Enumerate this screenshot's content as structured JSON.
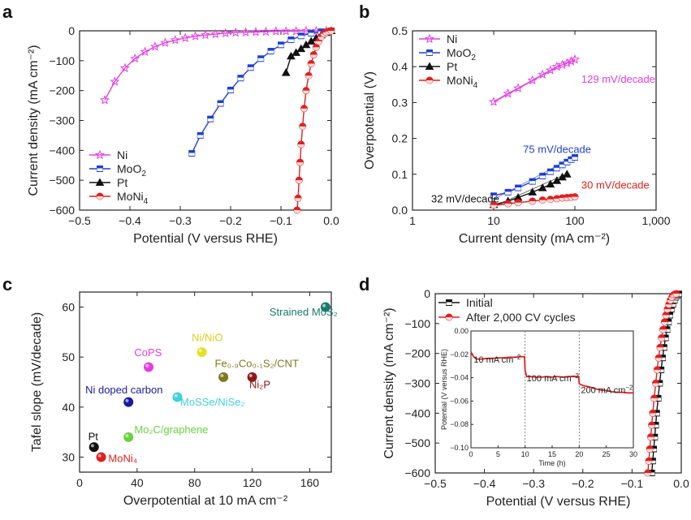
{
  "chart_data": [
    {
      "panel": "a",
      "type": "line",
      "xlabel": "Potential (V versus RHE)",
      "ylabel": "Current density (mA cm⁻²)",
      "xlim": [
        -0.5,
        0.0
      ],
      "ylim": [
        -600,
        0
      ],
      "xticks": [
        -0.5,
        -0.4,
        -0.3,
        -0.2,
        -0.1,
        0.0
      ],
      "xtick_labels": [
        "−0.5",
        "−0.4",
        "−0.3",
        "−0.2",
        "−0.1",
        "0.0"
      ],
      "yticks": [
        0,
        -100,
        -200,
        -300,
        -400,
        -500,
        -600
      ],
      "ytick_labels": [
        "0",
        "−100",
        "−200",
        "−300",
        "−400",
        "−500",
        "−600"
      ],
      "legend_position": "bottom-left",
      "series": [
        {
          "name": "Ni",
          "label_base": "Ni",
          "label_sub": "",
          "color": "#e040e0",
          "marker": "star",
          "x": [
            -0.45,
            -0.43,
            -0.41,
            -0.39,
            -0.37,
            -0.35,
            -0.33,
            -0.31,
            -0.29,
            -0.27,
            -0.25,
            -0.23,
            -0.21,
            -0.19,
            -0.17,
            -0.15,
            -0.13,
            -0.11,
            -0.09,
            -0.07,
            -0.05,
            -0.03,
            -0.01
          ],
          "y": [
            -232,
            -170,
            -125,
            -93,
            -70,
            -53,
            -40,
            -31,
            -24,
            -18,
            -14,
            -11,
            -8,
            -6,
            -5,
            -4,
            -3,
            -2,
            -1.5,
            -1,
            -0.5,
            -0.3,
            0
          ]
        },
        {
          "name": "MoO2",
          "label_base": "MoO",
          "label_sub": "2",
          "color": "#1f3fd1",
          "marker": "square",
          "x": [
            -0.277,
            -0.26,
            -0.24,
            -0.22,
            -0.2,
            -0.18,
            -0.16,
            -0.14,
            -0.12,
            -0.1,
            -0.08,
            -0.06,
            -0.04,
            -0.02,
            0.0
          ],
          "y": [
            -410,
            -350,
            -295,
            -243,
            -198,
            -158,
            -123,
            -93,
            -68,
            -47,
            -30,
            -17,
            -8,
            -3,
            0
          ]
        },
        {
          "name": "Pt",
          "label_base": "Pt",
          "label_sub": "",
          "color": "#111111",
          "marker": "triangle",
          "x": [
            -0.09,
            -0.08,
            -0.07,
            -0.06,
            -0.05,
            -0.04,
            -0.03,
            -0.02,
            -0.01,
            0.0
          ],
          "y": [
            -140,
            -85,
            -73,
            -60,
            -47,
            -35,
            -24,
            -14,
            -6,
            0
          ]
        },
        {
          "name": "MoNi4",
          "label_base": "MoNi",
          "label_sub": "4",
          "color": "#e02020",
          "marker": "circle",
          "x": [
            -0.068,
            -0.066,
            -0.064,
            -0.062,
            -0.06,
            -0.057,
            -0.054,
            -0.05,
            -0.045,
            -0.04,
            -0.035,
            -0.03,
            -0.025,
            -0.02,
            -0.015,
            -0.01,
            -0.005,
            0.0
          ],
          "y": [
            -600,
            -560,
            -500,
            -440,
            -380,
            -320,
            -260,
            -200,
            -150,
            -110,
            -80,
            -55,
            -35,
            -20,
            -10,
            -5,
            -2,
            0
          ]
        }
      ]
    },
    {
      "panel": "b",
      "type": "line",
      "xlabel": "Current density (mA cm⁻²)",
      "ylabel": "Overpotential (V)",
      "xscale": "log",
      "xlim": [
        1,
        1000
      ],
      "ylim": [
        0.0,
        0.5
      ],
      "xticks": [
        1,
        10,
        100,
        1000
      ],
      "xtick_labels": [
        "1",
        "10",
        "100",
        "1,000"
      ],
      "yticks": [
        0.0,
        0.1,
        0.2,
        0.3,
        0.4,
        0.5
      ],
      "ytick_labels": [
        "0.0",
        "0.1",
        "0.2",
        "0.3",
        "0.4",
        "0.5"
      ],
      "legend_position": "top-left",
      "series": [
        {
          "name": "Ni",
          "label_base": "Ni",
          "label_sub": "",
          "color": "#e040e0",
          "marker": "star",
          "x": [
            10,
            15,
            20,
            30,
            40,
            50,
            60,
            70,
            80,
            90,
            100
          ],
          "y": [
            0.302,
            0.325,
            0.34,
            0.362,
            0.378,
            0.39,
            0.4,
            0.405,
            0.41,
            0.415,
            0.42
          ]
        },
        {
          "name": "MoO2",
          "label_base": "MoO",
          "label_sub": "2",
          "color": "#1f3fd1",
          "marker": "square",
          "x": [
            10,
            15,
            20,
            30,
            40,
            50,
            60,
            70,
            80,
            90,
            100
          ],
          "y": [
            0.04,
            0.05,
            0.062,
            0.08,
            0.095,
            0.107,
            0.117,
            0.126,
            0.134,
            0.141,
            0.147
          ]
        },
        {
          "name": "Pt",
          "label_base": "Pt",
          "label_sub": "",
          "color": "#111111",
          "marker": "triangle",
          "x": [
            10,
            15,
            20,
            30,
            40,
            50,
            60,
            70,
            80
          ],
          "y": [
            0.015,
            0.025,
            0.035,
            0.05,
            0.062,
            0.072,
            0.082,
            0.092,
            0.1
          ]
        },
        {
          "name": "MoNi4",
          "label_base": "MoNi",
          "label_sub": "4",
          "color": "#e02020",
          "marker": "circle",
          "x": [
            10,
            15,
            20,
            30,
            40,
            50,
            60,
            70,
            80,
            90,
            100
          ],
          "y": [
            0.014,
            0.018,
            0.021,
            0.025,
            0.028,
            0.03,
            0.032,
            0.034,
            0.035,
            0.036,
            0.037
          ]
        }
      ],
      "annotations": [
        {
          "text": "129 mV/decade",
          "x": 120,
          "y": 0.355,
          "color": "#e040e0"
        },
        {
          "text": "75 mV/decade",
          "x": 23,
          "y": 0.16,
          "color": "#1f3fd1"
        },
        {
          "text": "30 mV/decade",
          "x": 120,
          "y": 0.06,
          "color": "#e02020"
        },
        {
          "text": "32 mV/decade",
          "x": 1.7,
          "y": 0.022,
          "color": "#111111"
        }
      ]
    },
    {
      "panel": "c",
      "type": "scatter",
      "xlabel": "Overpotential at 10 mA cm⁻²",
      "ylabel": "Tafel slope (mV/decade)",
      "xlim": [
        0,
        175
      ],
      "ylim": [
        27,
        63
      ],
      "xticks": [
        0,
        40,
        80,
        120,
        160
      ],
      "xtick_labels": [
        "0",
        "40",
        "80",
        "120",
        "160"
      ],
      "yticks": [
        30,
        40,
        50,
        60
      ],
      "ytick_labels": [
        "30",
        "40",
        "50",
        "60"
      ],
      "points": [
        {
          "label": "Strained MoS₂",
          "x": 171,
          "y": 60,
          "color": "#1a7a6a",
          "lx": 132,
          "ly": 58.3
        },
        {
          "label": "Ni/NiO",
          "x": 85,
          "y": 51,
          "color": "#e6e020",
          "lx": 78,
          "ly": 53.2
        },
        {
          "label": "CoPS",
          "x": 48,
          "y": 48,
          "color": "#e040e0",
          "lx": 38,
          "ly": 50.2
        },
        {
          "label": "Fe₀.₉Co₀.₁S₂/CNT",
          "x": 100,
          "y": 46,
          "color": "#7a7a20",
          "lx": 94,
          "ly": 48.0
        },
        {
          "label": "Ni₂P",
          "x": 120,
          "y": 46,
          "color": "#8a1a1a",
          "lx": 118,
          "ly": 43.8
        },
        {
          "label": "Ni doped carbon",
          "x": 34,
          "y": 41,
          "color": "#1a1aa0",
          "lx": 4,
          "ly": 42.7
        },
        {
          "label": "MoSSe/NiSe₂",
          "x": 68,
          "y": 42,
          "color": "#40d0e0",
          "lx": 70,
          "ly": 40.3
        },
        {
          "label": "Mo₂C/graphene",
          "x": 34,
          "y": 34,
          "color": "#6ad040",
          "lx": 38,
          "ly": 34.8
        },
        {
          "label": "Pt",
          "x": 10,
          "y": 32,
          "color": "#111111",
          "lx": 6,
          "ly": 33.4
        },
        {
          "label": "MoNi₄",
          "x": 15,
          "y": 30,
          "color": "#e02020",
          "lx": 20,
          "ly": 29.0
        }
      ]
    },
    {
      "panel": "d",
      "type": "line",
      "xlabel": "Potential (V versus RHE)",
      "ylabel": "Current density (mA cm⁻²)",
      "xlim": [
        -0.5,
        0.0
      ],
      "ylim": [
        -600,
        0
      ],
      "xticks": [
        -0.5,
        -0.4,
        -0.3,
        -0.2,
        -0.1,
        0.0
      ],
      "xtick_labels": [
        "−0.5",
        "−0.4",
        "−0.3",
        "−0.2",
        "−0.1",
        "0.0"
      ],
      "yticks": [
        0,
        -100,
        -200,
        -300,
        -400,
        -500,
        -600
      ],
      "ytick_labels": [
        "0",
        "−100",
        "−200",
        "−300",
        "−400",
        "−500",
        "−600"
      ],
      "legend_position": "top-left",
      "series": [
        {
          "name": "Initial",
          "color": "#111111",
          "marker": "square",
          "x": [
            -0.06,
            -0.058,
            -0.056,
            -0.054,
            -0.052,
            -0.05,
            -0.047,
            -0.044,
            -0.041,
            -0.038,
            -0.035,
            -0.032,
            -0.029,
            -0.026,
            -0.023,
            -0.02,
            -0.017,
            -0.014,
            -0.011,
            -0.008,
            -0.005
          ],
          "y": [
            -600,
            -560,
            -520,
            -480,
            -440,
            -400,
            -350,
            -300,
            -255,
            -215,
            -180,
            -148,
            -120,
            -95,
            -72,
            -52,
            -36,
            -22,
            -12,
            -5,
            -1
          ]
        },
        {
          "name": "After 2,000 CV cycles",
          "color": "#e02020",
          "marker": "circle",
          "x": [
            -0.068,
            -0.066,
            -0.064,
            -0.062,
            -0.06,
            -0.058,
            -0.055,
            -0.052,
            -0.049,
            -0.046,
            -0.043,
            -0.04,
            -0.037,
            -0.034,
            -0.031,
            -0.028,
            -0.025,
            -0.022,
            -0.019,
            -0.016,
            -0.013,
            -0.01
          ],
          "y": [
            -600,
            -560,
            -520,
            -480,
            -440,
            -400,
            -350,
            -300,
            -255,
            -215,
            -180,
            -148,
            -120,
            -95,
            -72,
            -52,
            -36,
            -22,
            -12,
            -5,
            -2,
            0
          ]
        }
      ],
      "inset": {
        "xlabel": "Time (h)",
        "ylabel": "Potential (V versus RHE)",
        "xlim": [
          0,
          30
        ],
        "ylim": [
          -0.1,
          0.0
        ],
        "xticks": [
          0,
          5,
          10,
          15,
          20,
          25,
          30
        ],
        "xtick_labels": [
          "0",
          "5",
          "10",
          "15",
          "20",
          "25",
          "30"
        ],
        "yticks": [
          -0.1,
          -0.08,
          -0.06,
          -0.04,
          -0.02,
          0.0
        ],
        "ytick_labels": [
          "−0.10",
          "−0.08",
          "−0.06",
          "−0.04",
          "−0.02",
          "0.00"
        ],
        "dividers": [
          10,
          20
        ],
        "annotations": [
          {
            "base": "10 mA cm",
            "sup": "−2",
            "x": 0.5,
            "y": -0.027
          },
          {
            "base": "100 mA cm",
            "sup": "−2",
            "x": 10.3,
            "y": -0.043
          },
          {
            "base": "200 mA cm",
            "sup": "−2",
            "x": 20.3,
            "y": -0.053
          }
        ],
        "series": [
          {
            "color": "#e02020",
            "x": [
              0,
              0.5,
              1,
              2,
              3,
              4,
              5,
              6,
              7,
              8,
              9,
              9.9,
              10.0,
              10.3,
              11,
              12,
              13,
              14,
              15,
              16,
              17,
              18,
              19,
              19.9,
              20.0,
              20.3,
              21,
              22,
              23,
              24,
              25,
              26,
              27,
              28,
              29,
              30
            ],
            "y": [
              -0.018,
              -0.022,
              -0.024,
              -0.024,
              -0.0235,
              -0.0235,
              -0.023,
              -0.023,
              -0.0225,
              -0.0225,
              -0.022,
              -0.022,
              -0.034,
              -0.039,
              -0.039,
              -0.0395,
              -0.0395,
              -0.039,
              -0.0395,
              -0.039,
              -0.0395,
              -0.039,
              -0.039,
              -0.039,
              -0.045,
              -0.046,
              -0.047,
              -0.048,
              -0.0495,
              -0.0505,
              -0.051,
              -0.052,
              -0.0525,
              -0.0525,
              -0.053,
              -0.053
            ]
          }
        ]
      }
    }
  ],
  "panel_labels": [
    "a",
    "b",
    "c",
    "d"
  ]
}
